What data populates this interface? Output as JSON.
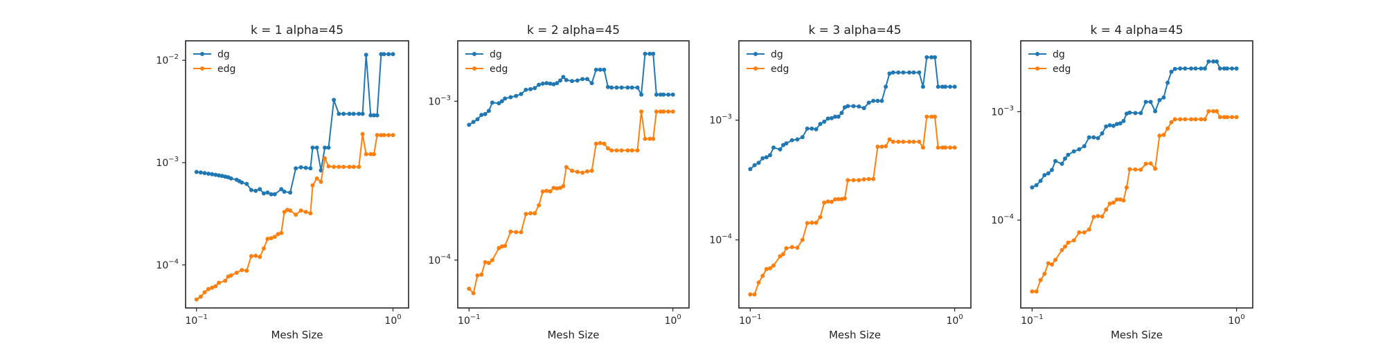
{
  "chart_data": [
    {
      "type": "line",
      "title": "k = 1 alpha=45",
      "xlabel": "Mesh Size",
      "ylabel": "",
      "x_scale": "log",
      "y_scale": "log",
      "xlim": [
        0.088,
        1.2
      ],
      "ylim": [
        3.8e-05,
        0.0155
      ],
      "xticks": [
        {
          "base": "10",
          "exp": "−1",
          "value": 0.1
        },
        {
          "base": "10",
          "exp": "0",
          "value": 1
        }
      ],
      "yticks": [
        {
          "base": "10",
          "exp": "−4",
          "value": 0.0001
        },
        {
          "base": "10",
          "exp": "−3",
          "value": 0.001
        },
        {
          "base": "10",
          "exp": "−2",
          "value": 0.01
        }
      ],
      "grid": false,
      "legend": "top-left",
      "series": [
        {
          "name": "dg",
          "color": "#1f77b4",
          "x": [
            0.1,
            0.105,
            0.11,
            0.115,
            0.12,
            0.125,
            0.13,
            0.135,
            0.14,
            0.145,
            0.15,
            0.16,
            0.165,
            0.17,
            0.18,
            0.19,
            0.2,
            0.21,
            0.22,
            0.23,
            0.24,
            0.25,
            0.27,
            0.28,
            0.3,
            0.32,
            0.34,
            0.36,
            0.38,
            0.39,
            0.41,
            0.43,
            0.45,
            0.47,
            0.5,
            0.53,
            0.56,
            0.6,
            0.63,
            0.67,
            0.7,
            0.73,
            0.77,
            0.8,
            0.83,
            0.87,
            0.9,
            0.95,
            1.0
          ],
          "y": [
            0.00081,
            0.0008,
            0.00079,
            0.00078,
            0.00077,
            0.00076,
            0.00075,
            0.00074,
            0.00073,
            0.00072,
            0.0007,
            0.00068,
            0.00066,
            0.00064,
            0.00062,
            0.00054,
            0.00053,
            0.00055,
            0.0005,
            0.00051,
            0.00049,
            0.00049,
            0.00055,
            0.00052,
            0.00051,
            0.00088,
            0.0009,
            0.00089,
            0.00088,
            0.0014,
            0.0014,
            0.00084,
            0.0014,
            0.0014,
            0.0041,
            0.003,
            0.003,
            0.003,
            0.003,
            0.003,
            0.003,
            0.0113,
            0.0029,
            0.0029,
            0.0029,
            0.0115,
            0.0115,
            0.0115,
            0.0115
          ]
        },
        {
          "name": "edg",
          "color": "#ff7f0e",
          "x": [
            0.1,
            0.105,
            0.11,
            0.115,
            0.12,
            0.125,
            0.13,
            0.14,
            0.145,
            0.15,
            0.16,
            0.17,
            0.18,
            0.19,
            0.2,
            0.21,
            0.22,
            0.23,
            0.24,
            0.25,
            0.26,
            0.27,
            0.28,
            0.29,
            0.3,
            0.32,
            0.34,
            0.36,
            0.38,
            0.39,
            0.41,
            0.43,
            0.45,
            0.47,
            0.5,
            0.53,
            0.56,
            0.6,
            0.63,
            0.67,
            0.7,
            0.73,
            0.77,
            0.8,
            0.83,
            0.87,
            0.9,
            0.95,
            1.0
          ],
          "y": [
            4.6e-05,
            4.9e-05,
            5.4e-05,
            5.8e-05,
            6e-05,
            6.2e-05,
            6.7e-05,
            7e-05,
            7.7e-05,
            7.9e-05,
            8.4e-05,
            8.9e-05,
            8.8e-05,
            0.000122,
            0.000123,
            0.00012,
            0.000145,
            0.00018,
            0.000183,
            0.000188,
            0.0002,
            0.000205,
            0.00033,
            0.000345,
            0.00034,
            0.00031,
            0.00034,
            0.00033,
            0.00032,
            0.0006,
            0.0007,
            0.00065,
            0.0011,
            0.00092,
            0.00091,
            0.00091,
            0.00091,
            0.00091,
            0.00091,
            0.00091,
            0.0019,
            0.00121,
            0.00121,
            0.00121,
            0.00186,
            0.00186,
            0.00186,
            0.00186,
            0.00186
          ]
        }
      ]
    },
    {
      "type": "line",
      "title": "k = 2 alpha=45",
      "xlabel": "Mesh Size",
      "ylabel": "",
      "x_scale": "log",
      "y_scale": "log",
      "xlim": [
        0.088,
        1.2
      ],
      "ylim": [
        5e-05,
        0.0024
      ],
      "xticks": [
        {
          "base": "10",
          "exp": "−1",
          "value": 0.1
        },
        {
          "base": "10",
          "exp": "0",
          "value": 1
        }
      ],
      "yticks": [
        {
          "base": "10",
          "exp": "−4",
          "value": 0.0001
        },
        {
          "base": "10",
          "exp": "−3",
          "value": 0.001
        }
      ],
      "grid": false,
      "legend": "top-left",
      "series": [
        {
          "name": "dg",
          "color": "#1f77b4",
          "x": [
            0.1,
            0.105,
            0.11,
            0.115,
            0.12,
            0.125,
            0.13,
            0.14,
            0.145,
            0.15,
            0.16,
            0.17,
            0.18,
            0.19,
            0.2,
            0.21,
            0.22,
            0.23,
            0.24,
            0.25,
            0.26,
            0.27,
            0.28,
            0.29,
            0.3,
            0.32,
            0.34,
            0.36,
            0.38,
            0.4,
            0.42,
            0.44,
            0.46,
            0.48,
            0.5,
            0.53,
            0.56,
            0.6,
            0.63,
            0.67,
            0.7,
            0.73,
            0.77,
            0.8,
            0.83,
            0.87,
            0.9,
            0.95,
            1.0
          ],
          "y": [
            0.00071,
            0.00074,
            0.00077,
            0.00082,
            0.00083,
            0.00087,
            0.00098,
            0.00097,
            0.001,
            0.00104,
            0.00106,
            0.00108,
            0.00111,
            0.00118,
            0.00119,
            0.00121,
            0.00127,
            0.00129,
            0.0013,
            0.00129,
            0.00128,
            0.0013,
            0.00135,
            0.00142,
            0.00136,
            0.00134,
            0.00135,
            0.00138,
            0.00138,
            0.0013,
            0.00158,
            0.00158,
            0.00158,
            0.00123,
            0.00122,
            0.00122,
            0.00122,
            0.00122,
            0.00122,
            0.00122,
            0.0011,
            0.00199,
            0.00199,
            0.00199,
            0.0011,
            0.0011,
            0.0011,
            0.0011,
            0.0011
          ]
        },
        {
          "name": "edg",
          "color": "#ff7f0e",
          "x": [
            0.1,
            0.105,
            0.11,
            0.115,
            0.12,
            0.125,
            0.13,
            0.14,
            0.145,
            0.15,
            0.16,
            0.17,
            0.18,
            0.19,
            0.2,
            0.21,
            0.22,
            0.23,
            0.24,
            0.25,
            0.26,
            0.27,
            0.28,
            0.29,
            0.3,
            0.32,
            0.34,
            0.36,
            0.38,
            0.4,
            0.42,
            0.44,
            0.46,
            0.48,
            0.5,
            0.53,
            0.56,
            0.6,
            0.63,
            0.67,
            0.7,
            0.73,
            0.77,
            0.8,
            0.83,
            0.87,
            0.9,
            0.95,
            1.0
          ],
          "y": [
            6.6e-05,
            6.2e-05,
            8e-05,
            8.1e-05,
            9.7e-05,
            9.6e-05,
            0.0001,
            0.000119,
            0.000122,
            0.000123,
            0.000151,
            0.00015,
            0.00015,
            0.000195,
            0.000197,
            0.000197,
            0.000221,
            0.00027,
            0.000273,
            0.000271,
            0.000285,
            0.000283,
            0.000285,
            0.000292,
            0.000385,
            0.000365,
            0.000359,
            0.000355,
            0.000362,
            0.000365,
            0.00054,
            0.000545,
            0.00054,
            0.000505,
            0.00049,
            0.00049,
            0.00049,
            0.00049,
            0.00049,
            0.00049,
            0.00086,
            0.00058,
            0.00058,
            0.00058,
            0.00086,
            0.00086,
            0.00086,
            0.00086,
            0.00086
          ]
        }
      ]
    },
    {
      "type": "line",
      "title": "k = 3 alpha=45",
      "xlabel": "Mesh Size",
      "ylabel": "",
      "x_scale": "log",
      "y_scale": "log",
      "xlim": [
        0.088,
        1.2
      ],
      "ylim": [
        2.7e-05,
        0.0046
      ],
      "xticks": [
        {
          "base": "10",
          "exp": "−1",
          "value": 0.1
        },
        {
          "base": "10",
          "exp": "0",
          "value": 1
        }
      ],
      "yticks": [
        {
          "base": "10",
          "exp": "−4",
          "value": 0.0001
        },
        {
          "base": "10",
          "exp": "−3",
          "value": 0.001
        }
      ],
      "grid": false,
      "legend": "top-left",
      "series": [
        {
          "name": "dg",
          "color": "#1f77b4",
          "x": [
            0.1,
            0.105,
            0.11,
            0.115,
            0.12,
            0.125,
            0.13,
            0.14,
            0.145,
            0.15,
            0.16,
            0.17,
            0.18,
            0.19,
            0.2,
            0.21,
            0.22,
            0.23,
            0.24,
            0.25,
            0.26,
            0.27,
            0.28,
            0.29,
            0.3,
            0.32,
            0.34,
            0.36,
            0.38,
            0.4,
            0.42,
            0.44,
            0.46,
            0.48,
            0.5,
            0.53,
            0.56,
            0.6,
            0.63,
            0.67,
            0.7,
            0.73,
            0.77,
            0.8,
            0.83,
            0.87,
            0.9,
            0.95,
            1.0
          ],
          "y": [
            0.00039,
            0.00042,
            0.00044,
            0.00048,
            0.00049,
            0.00051,
            0.00059,
            0.00057,
            0.00062,
            0.00064,
            0.00068,
            0.00069,
            0.00072,
            0.00085,
            0.00085,
            0.00084,
            0.00093,
            0.00097,
            0.00103,
            0.00104,
            0.00107,
            0.00107,
            0.00115,
            0.00128,
            0.00131,
            0.00131,
            0.0013,
            0.00126,
            0.0014,
            0.00145,
            0.00145,
            0.00145,
            0.0019,
            0.00245,
            0.0025,
            0.0025,
            0.0025,
            0.0025,
            0.0025,
            0.0025,
            0.0019,
            0.00335,
            0.00335,
            0.00335,
            0.0019,
            0.0019,
            0.0019,
            0.0019,
            0.0019
          ]
        },
        {
          "name": "edg",
          "color": "#ff7f0e",
          "x": [
            0.1,
            0.105,
            0.11,
            0.115,
            0.12,
            0.125,
            0.13,
            0.14,
            0.145,
            0.15,
            0.16,
            0.17,
            0.18,
            0.19,
            0.2,
            0.21,
            0.22,
            0.23,
            0.24,
            0.25,
            0.26,
            0.27,
            0.28,
            0.29,
            0.3,
            0.32,
            0.34,
            0.36,
            0.38,
            0.4,
            0.42,
            0.44,
            0.46,
            0.48,
            0.5,
            0.53,
            0.56,
            0.6,
            0.63,
            0.67,
            0.7,
            0.73,
            0.77,
            0.8,
            0.83,
            0.87,
            0.9,
            0.95,
            1.0
          ],
          "y": [
            3.5e-05,
            3.5e-05,
            4.4e-05,
            5e-05,
            5.7e-05,
            5.8e-05,
            6.1e-05,
            7.3e-05,
            7.6e-05,
            8.5e-05,
            8.7e-05,
            8.6e-05,
            0.0001,
            0.000138,
            0.000139,
            0.000139,
            0.000155,
            0.000205,
            0.000209,
            0.000208,
            0.000218,
            0.000219,
            0.000219,
            0.000222,
            0.000315,
            0.000315,
            0.000315,
            0.00032,
            0.000322,
            0.000322,
            0.0006,
            0.0006,
            0.000605,
            0.00069,
            0.00066,
            0.00066,
            0.00066,
            0.00066,
            0.00066,
            0.00066,
            0.00059,
            0.00107,
            0.00107,
            0.00107,
            0.00059,
            0.00059,
            0.00059,
            0.00059,
            0.00059
          ]
        }
      ]
    },
    {
      "type": "line",
      "title": "k = 4 alpha=45",
      "xlabel": "Mesh Size",
      "ylabel": "",
      "x_scale": "log",
      "y_scale": "log",
      "xlim": [
        0.088,
        1.2
      ],
      "ylim": [
        1.55e-05,
        0.0045
      ],
      "xticks": [
        {
          "base": "10",
          "exp": "−1",
          "value": 0.1
        },
        {
          "base": "10",
          "exp": "0",
          "value": 1
        }
      ],
      "yticks": [
        {
          "base": "10",
          "exp": "−4",
          "value": 0.0001
        },
        {
          "base": "10",
          "exp": "−3",
          "value": 0.001
        }
      ],
      "grid": false,
      "legend": "top-left",
      "series": [
        {
          "name": "dg",
          "color": "#1f77b4",
          "x": [
            0.1,
            0.105,
            0.11,
            0.115,
            0.12,
            0.125,
            0.13,
            0.14,
            0.145,
            0.15,
            0.16,
            0.17,
            0.18,
            0.19,
            0.2,
            0.21,
            0.22,
            0.23,
            0.24,
            0.25,
            0.26,
            0.27,
            0.28,
            0.29,
            0.3,
            0.32,
            0.34,
            0.36,
            0.38,
            0.4,
            0.42,
            0.44,
            0.46,
            0.48,
            0.5,
            0.53,
            0.56,
            0.6,
            0.63,
            0.67,
            0.7,
            0.73,
            0.77,
            0.8,
            0.83,
            0.87,
            0.9,
            0.95,
            1.0
          ],
          "y": [
            0.0002,
            0.00021,
            0.00023,
            0.00026,
            0.00027,
            0.00029,
            0.00035,
            0.00033,
            0.00037,
            0.0004,
            0.00043,
            0.00045,
            0.00048,
            0.00058,
            0.00058,
            0.00057,
            0.00063,
            0.00073,
            0.00075,
            0.00074,
            0.00077,
            0.00078,
            0.00082,
            0.00096,
            0.00098,
            0.00097,
            0.00097,
            0.00123,
            0.00123,
            0.00101,
            0.00128,
            0.00135,
            0.00185,
            0.00233,
            0.00248,
            0.0025,
            0.0025,
            0.0025,
            0.0025,
            0.0025,
            0.0025,
            0.0029,
            0.0029,
            0.0029,
            0.0025,
            0.0025,
            0.0025,
            0.0025,
            0.0025
          ]
        },
        {
          "name": "edg",
          "color": "#ff7f0e",
          "x": [
            0.1,
            0.105,
            0.11,
            0.115,
            0.12,
            0.125,
            0.13,
            0.14,
            0.145,
            0.15,
            0.16,
            0.17,
            0.18,
            0.19,
            0.2,
            0.21,
            0.22,
            0.23,
            0.24,
            0.25,
            0.26,
            0.27,
            0.28,
            0.29,
            0.3,
            0.32,
            0.34,
            0.36,
            0.38,
            0.4,
            0.42,
            0.44,
            0.46,
            0.48,
            0.5,
            0.53,
            0.56,
            0.6,
            0.63,
            0.67,
            0.7,
            0.73,
            0.77,
            0.8,
            0.83,
            0.87,
            0.9,
            0.95,
            1.0
          ],
          "y": [
            2.2e-05,
            2.2e-05,
            2.8e-05,
            3.2e-05,
            4e-05,
            3.9e-05,
            4.3e-05,
            5.3e-05,
            5.7e-05,
            6.2e-05,
            6.5e-05,
            7.7e-05,
            7.7e-05,
            8.2e-05,
            0.000107,
            0.000109,
            0.000108,
            0.000125,
            0.000142,
            0.000145,
            0.000155,
            0.000155,
            0.000152,
            0.0002,
            0.000295,
            0.000293,
            0.000292,
            0.00033,
            0.000333,
            0.000298,
            0.0006,
            0.00061,
            0.0007,
            0.0008,
            0.00085,
            0.00085,
            0.00085,
            0.00085,
            0.00085,
            0.00085,
            0.00085,
            0.00101,
            0.00101,
            0.00101,
            0.00089,
            0.00089,
            0.00089,
            0.00089,
            0.00089
          ]
        }
      ]
    }
  ]
}
